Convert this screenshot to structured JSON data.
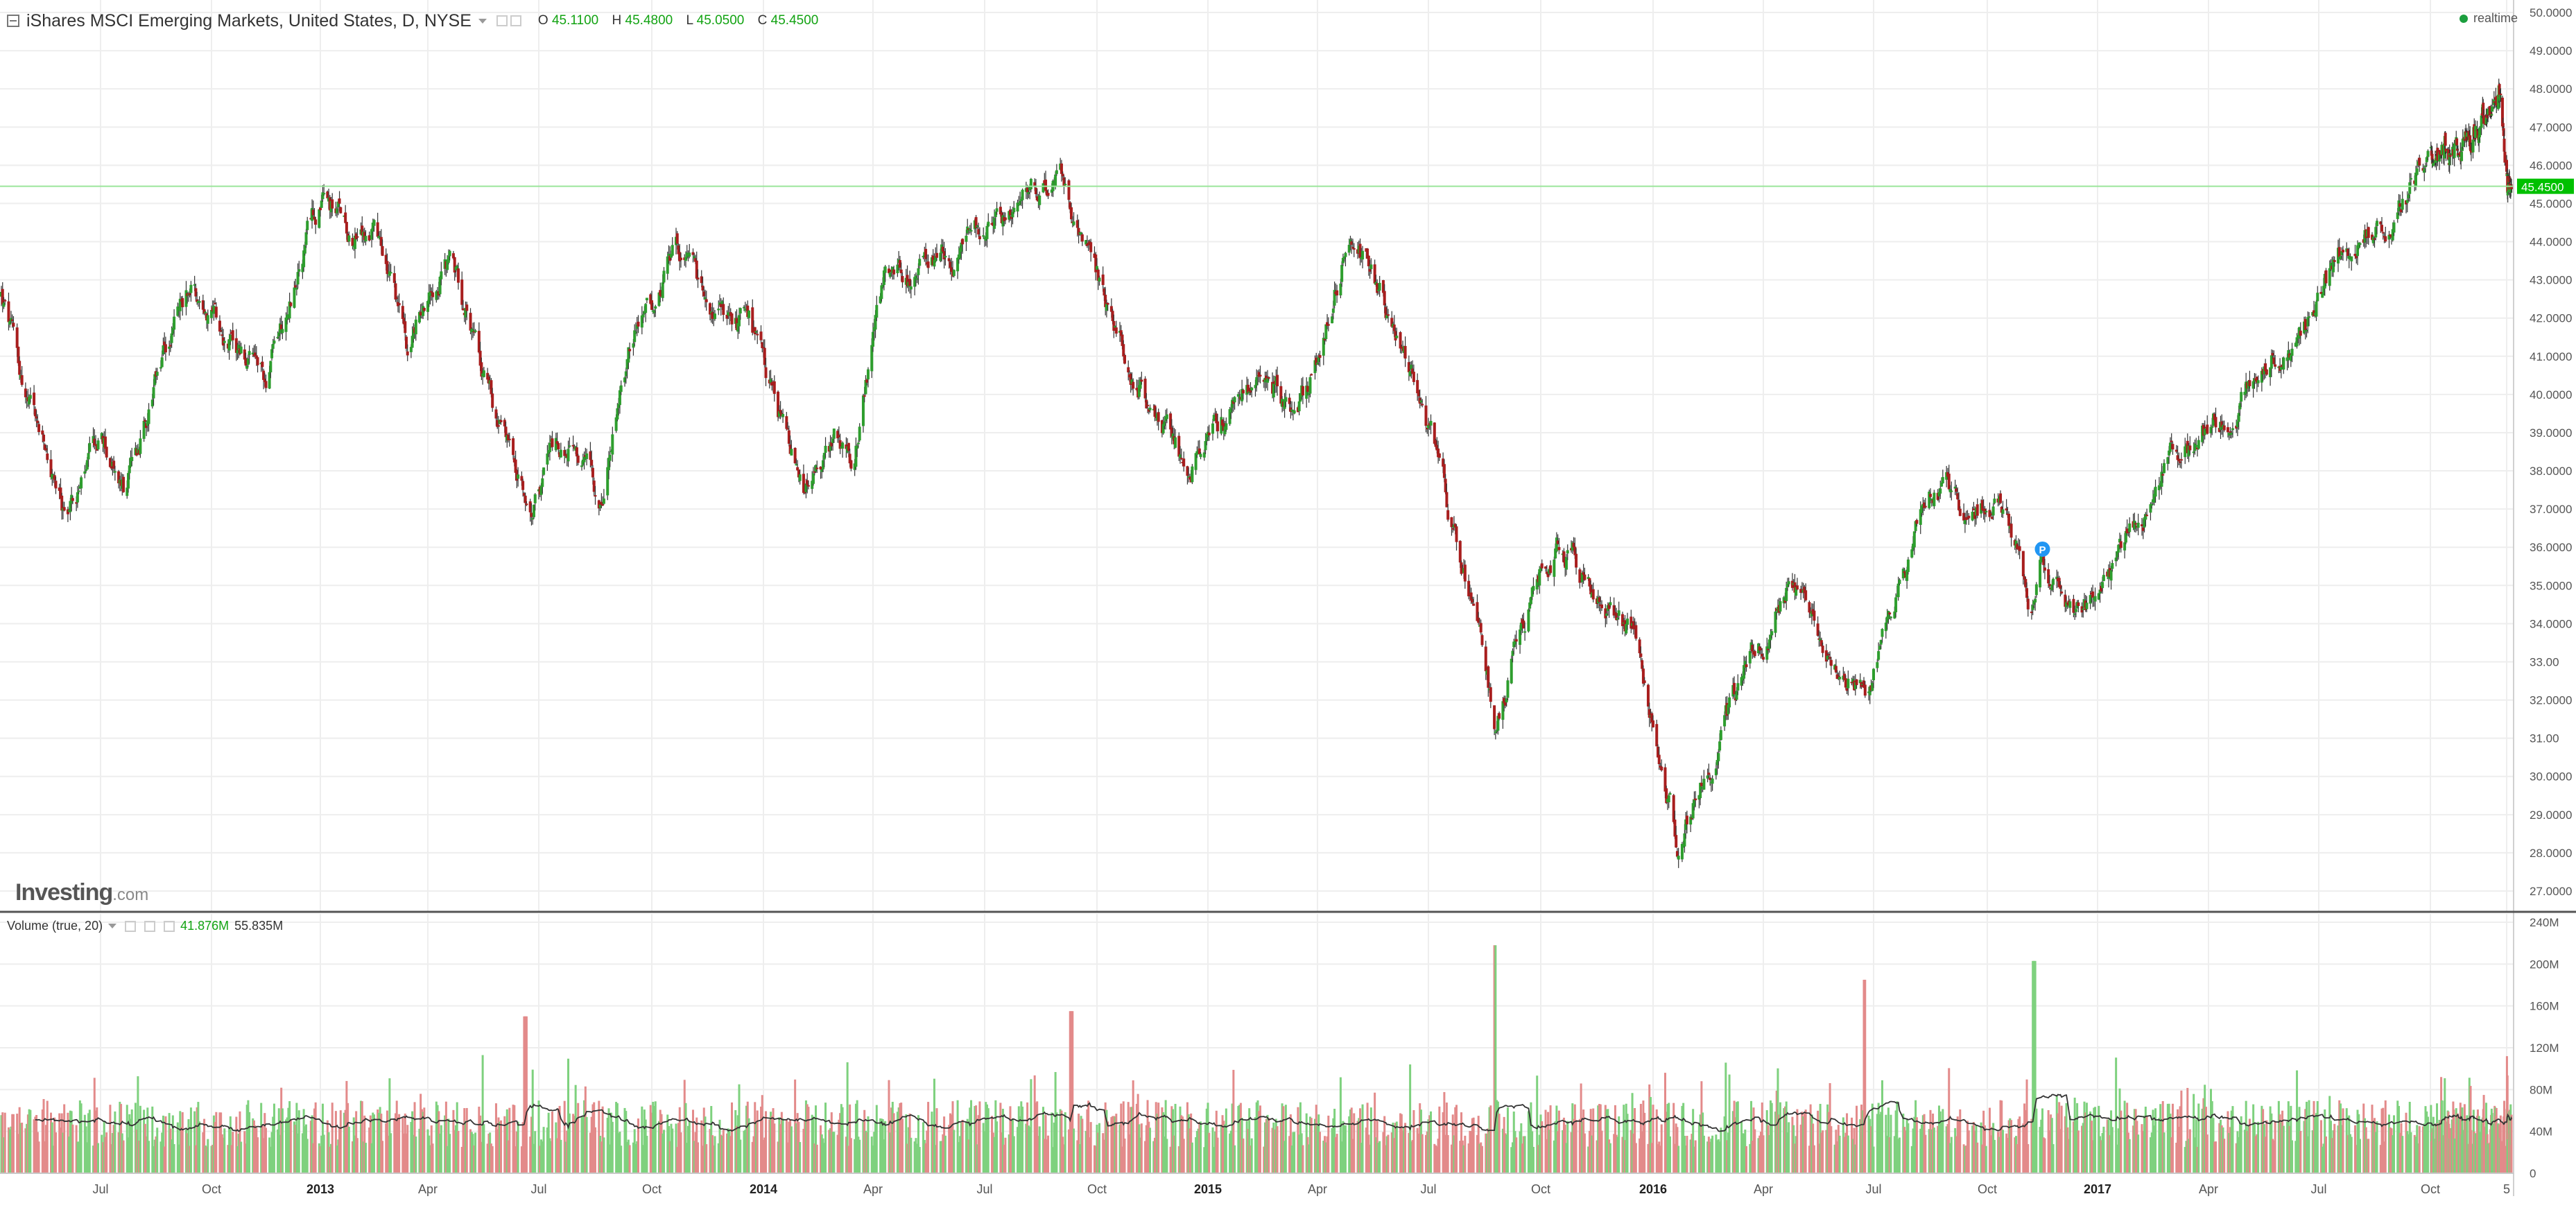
{
  "header": {
    "title": "iShares MSCI Emerging Markets, United States, D, NYSE",
    "ohlc": [
      {
        "label": "O",
        "value": "45.1100"
      },
      {
        "label": "H",
        "value": "45.4800"
      },
      {
        "label": "L",
        "value": "45.0500"
      },
      {
        "label": "C",
        "value": "45.4500"
      }
    ],
    "realtime_label": "realtime"
  },
  "volume_header": {
    "label": "Volume (true, 20)",
    "value1": "41.876M",
    "value2": "55.835M"
  },
  "watermark": {
    "brand": "Investing",
    "suffix": ".com"
  },
  "marker_label": "P",
  "colors": {
    "up": "#2e9e2e",
    "down": "#a81e1e",
    "vol_up": "#7ed17e",
    "vol_down": "#e38a8a",
    "last_price": "#00c000",
    "ma_line": "#333333",
    "grid": "#eeeeee"
  },
  "chart_data": [
    {
      "type": "candlestick",
      "title": "iShares MSCI Emerging Markets, United States, D, NYSE",
      "x_tick_labels": [
        "Jul",
        "Oct",
        "2013",
        "Apr",
        "Jul",
        "Oct",
        "2014",
        "Apr",
        "Jul",
        "Oct",
        "2015",
        "Apr",
        "Jul",
        "Oct",
        "2016",
        "Apr",
        "Jul",
        "Oct",
        "2017",
        "Apr",
        "Jul",
        "Oct",
        "5"
      ],
      "bold_x_ticks": [
        "2013",
        "2014",
        "2015",
        "2016",
        "2017"
      ],
      "y_tick_labels": [
        "27.0000",
        "28.0000",
        "29.0000",
        "30.0000",
        "31.00",
        "32.0000",
        "33.00",
        "34.0000",
        "35.0000",
        "36.0000",
        "37.0000",
        "38.0000",
        "39.0000",
        "40.0000",
        "41.0000",
        "42.0000",
        "43.0000",
        "44.0000",
        "45.0000",
        "46.0000",
        "47.0000",
        "48.0000",
        "49.0000",
        "50.0000"
      ],
      "ylim": [
        26.6,
        50.2
      ],
      "last_price": "45.4500",
      "grid": true,
      "series": [
        {
          "name": "",
          "key_points": [
            [
              "2012-04-10",
              42.6
            ],
            [
              "2012-05-01",
              39.8
            ],
            [
              "2012-06-01",
              36.8
            ],
            [
              "2012-07-02",
              38.8
            ],
            [
              "2012-07-20",
              37.4
            ],
            [
              "2012-08-20",
              40.6
            ],
            [
              "2012-09-14",
              43.0
            ],
            [
              "2012-11-15",
              40.2
            ],
            [
              "2012-12-31",
              45.1
            ],
            [
              "2013-02-15",
              44.0
            ],
            [
              "2013-03-15",
              41.2
            ],
            [
              "2013-04-15",
              43.9
            ],
            [
              "2013-05-15",
              41.0
            ],
            [
              "2013-06-24",
              36.6
            ],
            [
              "2013-07-15",
              39.0
            ],
            [
              "2013-08-20",
              37.2
            ],
            [
              "2013-09-15",
              41.5
            ],
            [
              "2013-10-22",
              43.5
            ],
            [
              "2013-11-20",
              41.8
            ],
            [
              "2013-12-20",
              41.7
            ],
            [
              "2014-02-03",
              37.3
            ],
            [
              "2014-03-01",
              38.8
            ],
            [
              "2014-03-15",
              38.2
            ],
            [
              "2014-04-10",
              42.8
            ],
            [
              "2014-05-30",
              43.5
            ],
            [
              "2014-07-15",
              44.6
            ],
            [
              "2014-09-05",
              45.7
            ],
            [
              "2014-10-15",
              41.8
            ],
            [
              "2014-12-15",
              38.0
            ],
            [
              "2015-01-05",
              39.2
            ],
            [
              "2015-02-20",
              40.8
            ],
            [
              "2015-03-15",
              39.0
            ],
            [
              "2015-04-27",
              44.4
            ],
            [
              "2015-06-15",
              41.0
            ],
            [
              "2015-07-10",
              38.4
            ],
            [
              "2015-08-24",
              31.2
            ],
            [
              "2015-09-10",
              33.4
            ],
            [
              "2015-10-15",
              36.4
            ],
            [
              "2015-11-15",
              34.8
            ],
            [
              "2015-12-15",
              33.5
            ],
            [
              "2016-01-21",
              28.2
            ],
            [
              "2016-02-15",
              30.3
            ],
            [
              "2016-04-20",
              35.0
            ],
            [
              "2016-06-27",
              32.1
            ],
            [
              "2016-08-15",
              37.6
            ],
            [
              "2016-09-20",
              36.9
            ],
            [
              "2016-10-15",
              37.2
            ],
            [
              "2016-11-08",
              34.4
            ],
            [
              "2016-11-15",
              35.6
            ],
            [
              "2016-12-20",
              34.0
            ],
            [
              "2017-03-01",
              38.2
            ],
            [
              "2017-05-15",
              40.7
            ],
            [
              "2017-06-15",
              41.3
            ],
            [
              "2017-07-20",
              43.8
            ],
            [
              "2017-09-01",
              45.0
            ],
            [
              "2017-10-15",
              46.3
            ],
            [
              "2017-11-20",
              46.6
            ],
            [
              "2018-01-26",
              47.8
            ],
            [
              "2018-02-08",
              45.3
            ],
            [
              "2018-02-20",
              45.45
            ]
          ]
        }
      ]
    },
    {
      "type": "bar",
      "title": "Volume (true, 20)",
      "y_tick_labels": [
        "0",
        "40M",
        "80M",
        "120M",
        "160M",
        "200M",
        "240M"
      ],
      "ylim": [
        0,
        240
      ],
      "unit": "M",
      "moving_average_period": 20,
      "notable_peaks": [
        {
          "date": "2013-06-20",
          "value": 150
        },
        {
          "date": "2014-09-10",
          "value": 155
        },
        {
          "date": "2015-08-24",
          "value": 218
        },
        {
          "date": "2016-06-24",
          "value": 185
        },
        {
          "date": "2016-11-09",
          "value": 203
        }
      ]
    }
  ]
}
